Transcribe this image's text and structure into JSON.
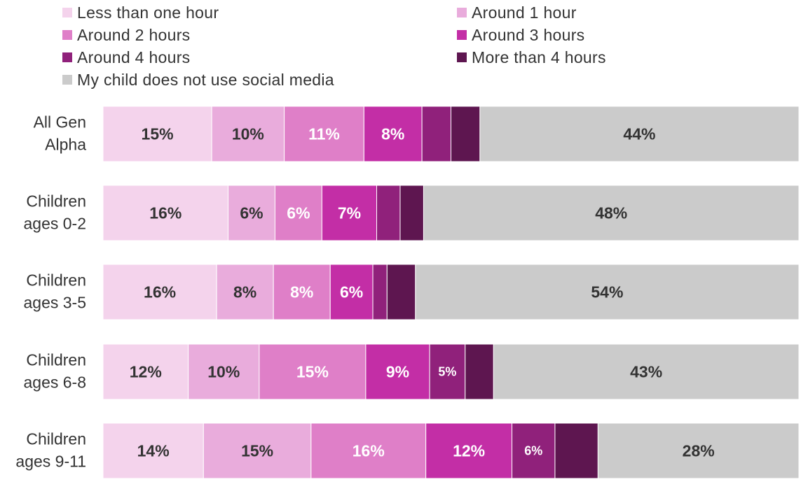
{
  "chart_data": {
    "type": "bar",
    "orientation": "horizontal",
    "stacked": true,
    "title": "",
    "xlabel": "",
    "ylabel": "",
    "xlim": [
      0,
      100
    ],
    "grid": false,
    "legend_position": "top",
    "categories": [
      [
        "All Gen",
        "Alpha"
      ],
      [
        "Children",
        "ages 0-2"
      ],
      [
        "Children",
        "ages 3-5"
      ],
      [
        "Children",
        "ages 6-8"
      ],
      [
        "Children",
        "ages 9-11"
      ]
    ],
    "series": [
      {
        "name": "Less than one hour",
        "color": "#f4d3ec",
        "label_color": "#333333",
        "values": [
          15,
          16,
          16,
          12,
          14
        ],
        "labels": [
          "15%",
          "16%",
          "16%",
          "12%",
          "14%"
        ]
      },
      {
        "name": "Around 1 hour",
        "color": "#e9acdc",
        "label_color": "#333333",
        "values": [
          10,
          6,
          8,
          10,
          15
        ],
        "labels": [
          "10%",
          "6%",
          "8%",
          "10%",
          "15%"
        ]
      },
      {
        "name": "Around 2 hours",
        "color": "#df7fc8",
        "label_color": "#ffffff",
        "values": [
          11,
          6,
          8,
          15,
          16
        ],
        "labels": [
          "11%",
          "6%",
          "8%",
          "15%",
          "16%"
        ]
      },
      {
        "name": "Around 3 hours",
        "color": "#c32ea6",
        "label_color": "#ffffff",
        "values": [
          8,
          7,
          6,
          9,
          12
        ],
        "labels": [
          "8%",
          "7%",
          "6%",
          "9%",
          "12%"
        ]
      },
      {
        "name": "Around 4 hours",
        "color": "#90217b",
        "label_color": "#ffffff",
        "values": [
          4,
          3,
          2,
          5,
          6
        ],
        "labels": [
          "",
          "",
          "",
          "5%",
          "6%"
        ]
      },
      {
        "name": "More than 4 hours",
        "color": "#5e1650",
        "label_color": "#ffffff",
        "values": [
          4,
          3,
          4,
          4,
          6
        ],
        "labels": [
          "",
          "",
          "",
          "",
          ""
        ]
      },
      {
        "name": "My child does not use social media",
        "color": "#cbcbcb",
        "label_color": "#333333",
        "values": [
          44,
          48,
          54,
          43,
          28
        ],
        "labels": [
          "44%",
          "48%",
          "54%",
          "43%",
          "28%"
        ]
      }
    ]
  }
}
